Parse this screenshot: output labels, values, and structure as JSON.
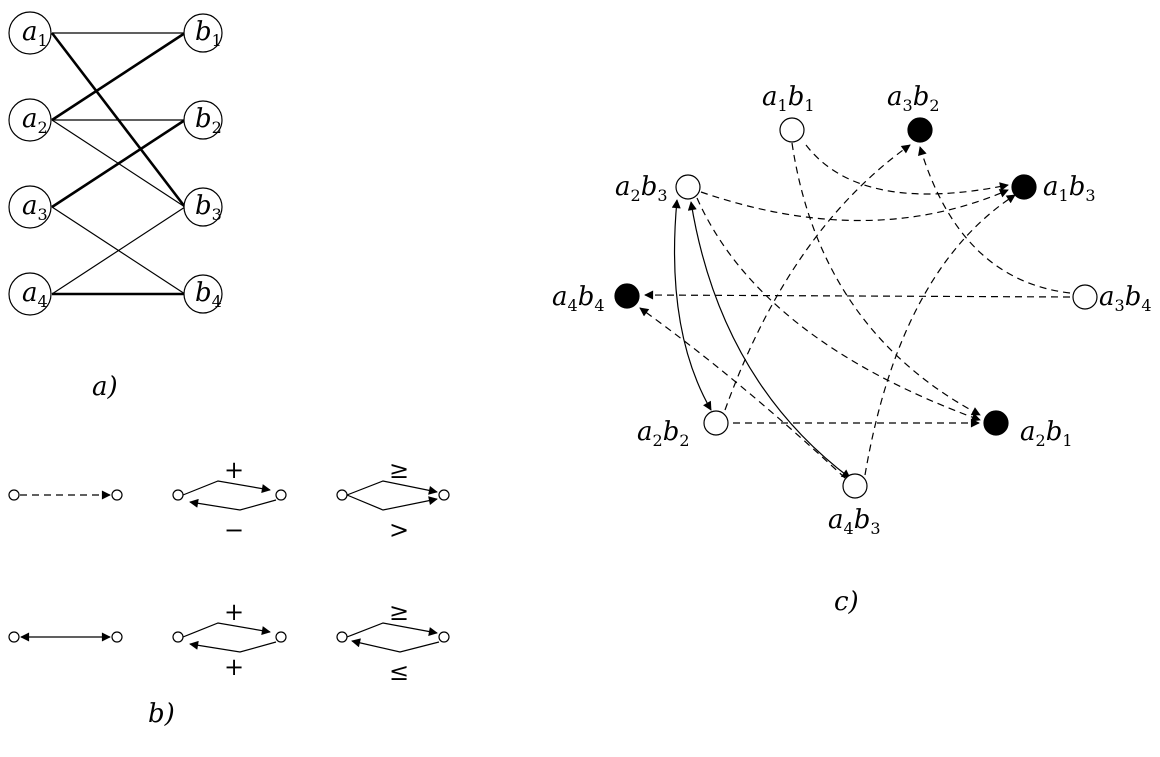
{
  "panel_a": {
    "caption": "a)",
    "left_nodes": [
      {
        "base": "a",
        "sub": "1"
      },
      {
        "base": "a",
        "sub": "2"
      },
      {
        "base": "a",
        "sub": "3"
      },
      {
        "base": "a",
        "sub": "4"
      }
    ],
    "right_nodes": [
      {
        "base": "b",
        "sub": "1"
      },
      {
        "base": "b",
        "sub": "2"
      },
      {
        "base": "b",
        "sub": "3"
      },
      {
        "base": "b",
        "sub": "4"
      }
    ]
  },
  "panel_b": {
    "caption": "b)",
    "row1": {
      "plus_top": "+",
      "minus_bottom": "−",
      "geq_top": "≥",
      "gt_bottom": ">"
    },
    "row2": {
      "plus_top": "+",
      "plus_bottom": "+",
      "geq_top": "≥",
      "leq_bottom": "≤"
    }
  },
  "panel_c": {
    "caption": "c)",
    "nodes": [
      {
        "id": "a1b1",
        "parts": [
          "a",
          "1",
          "b",
          "1"
        ]
      },
      {
        "id": "a3b2",
        "parts": [
          "a",
          "3",
          "b",
          "2"
        ]
      },
      {
        "id": "a1b3",
        "parts": [
          "a",
          "1",
          "b",
          "3"
        ]
      },
      {
        "id": "a2b3",
        "parts": [
          "a",
          "2",
          "b",
          "3"
        ]
      },
      {
        "id": "a4b4",
        "parts": [
          "a",
          "4",
          "b",
          "4"
        ]
      },
      {
        "id": "a3b4",
        "parts": [
          "a",
          "3",
          "b",
          "4"
        ]
      },
      {
        "id": "a2b2",
        "parts": [
          "a",
          "2",
          "b",
          "2"
        ]
      },
      {
        "id": "a2b1",
        "parts": [
          "a",
          "2",
          "b",
          "1"
        ]
      },
      {
        "id": "a4b3",
        "parts": [
          "a",
          "4",
          "b",
          "3"
        ]
      }
    ]
  }
}
